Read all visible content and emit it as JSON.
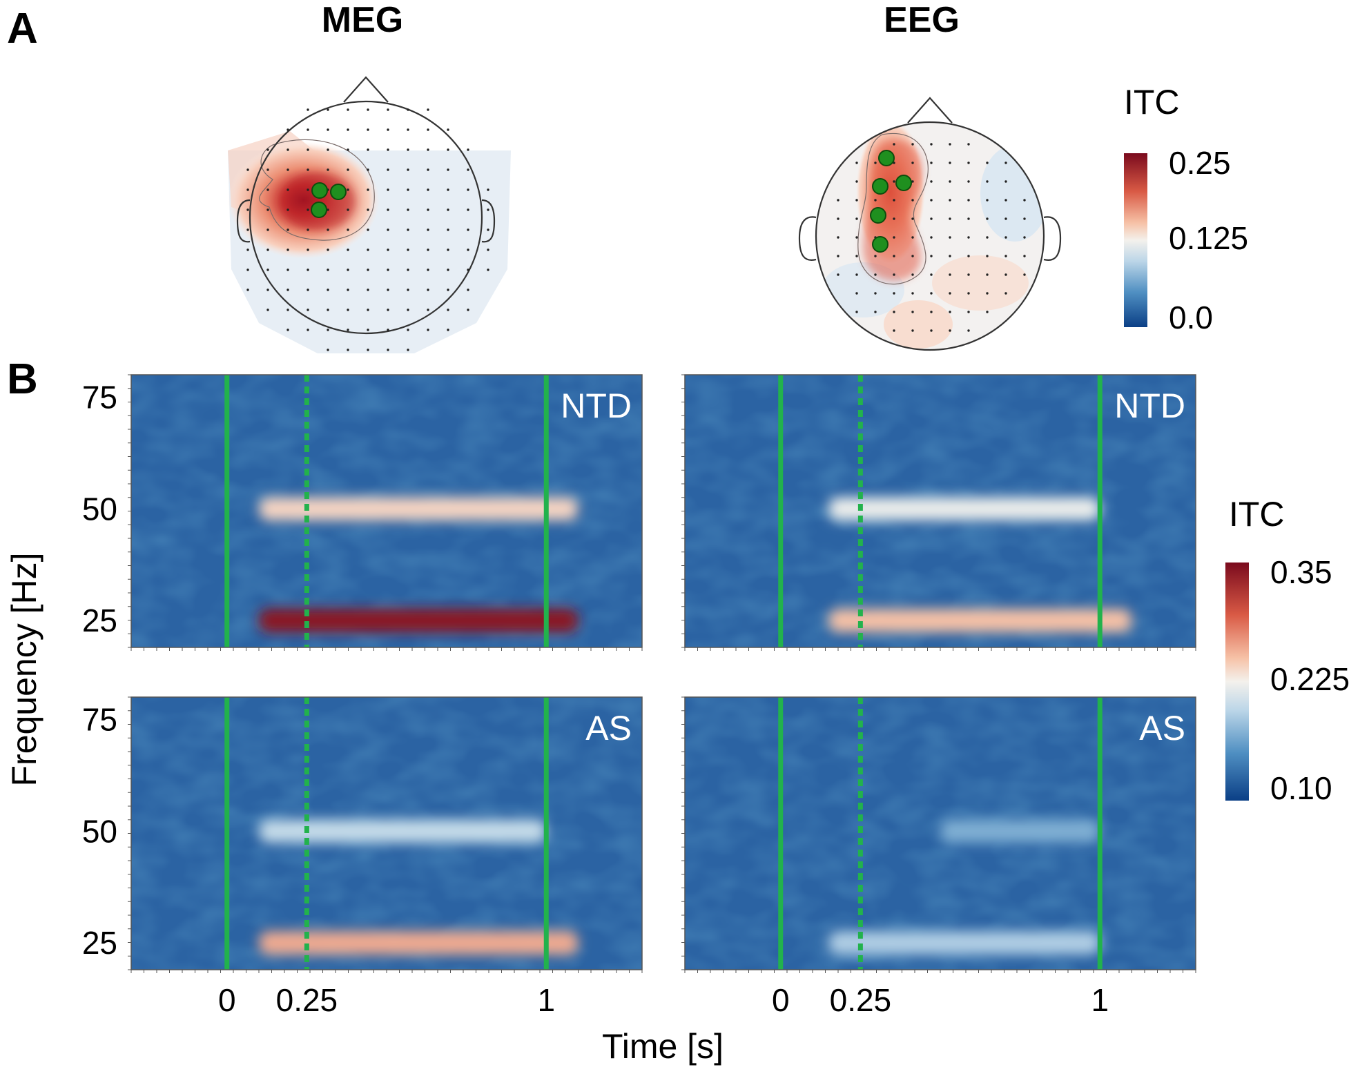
{
  "panel_labels": {
    "a": "A",
    "b": "B"
  },
  "topomaps": [
    {
      "title": "MEG",
      "hotspot_note": "left temporal ITC peak",
      "sensor_markers": 3
    },
    {
      "title": "EEG",
      "hotspot_note": "left fronto-central ITC cluster",
      "sensor_markers": 5
    }
  ],
  "colorbar_a": {
    "label": "ITC",
    "ticks": [
      "0.25",
      "0.125",
      "0.0"
    ],
    "range": [
      0.0,
      0.25
    ]
  },
  "colorbar_b": {
    "label": "ITC",
    "ticks": [
      "0.35",
      "0.225",
      "0.10"
    ],
    "range": [
      0.1,
      0.35
    ]
  },
  "axes": {
    "ylabel": "Frequency [Hz]",
    "xlabel": "Time [s]",
    "yticks": [
      {
        "value": 75,
        "label": "75"
      },
      {
        "value": 50,
        "label": "50"
      },
      {
        "value": 25,
        "label": "25"
      }
    ],
    "xticks": [
      {
        "value": 0,
        "label": "0"
      },
      {
        "value": 0.25,
        "label": "0.25"
      },
      {
        "value": 1,
        "label": "1"
      }
    ],
    "xlim": [
      -0.3,
      1.3
    ],
    "ylim": [
      19,
      80
    ]
  },
  "colors": {
    "marker_line": "#22b24c",
    "sensor_dot": "#1b8a1b",
    "cmap_low": "#0b3f86",
    "cmap_mid": "#f4f1ec",
    "cmap_high": "#7a0a1d"
  },
  "chart_data": [
    {
      "type": "heatmap",
      "title": "NTD",
      "modality": "MEG",
      "x": [
        0,
        0.25,
        1
      ],
      "y": [
        25,
        50,
        75
      ],
      "bands": [
        {
          "freq": 25,
          "t_start": 0.1,
          "t_end": 1.1,
          "itc": 0.34
        },
        {
          "freq": 50,
          "t_start": 0.1,
          "t_end": 1.1,
          "itc": 0.24
        }
      ],
      "vlines": [
        {
          "x": 0,
          "style": "solid"
        },
        {
          "x": 0.25,
          "style": "dashed"
        },
        {
          "x": 1,
          "style": "solid"
        }
      ]
    },
    {
      "type": "heatmap",
      "title": "NTD",
      "modality": "EEG",
      "x": [
        0,
        0.25,
        1
      ],
      "y": [
        25,
        50,
        75
      ],
      "bands": [
        {
          "freq": 25,
          "t_start": 0.15,
          "t_end": 1.1,
          "itc": 0.25
        },
        {
          "freq": 50,
          "t_start": 0.15,
          "t_end": 1.0,
          "itc": 0.22
        }
      ],
      "vlines": [
        {
          "x": 0,
          "style": "solid"
        },
        {
          "x": 0.25,
          "style": "dashed"
        },
        {
          "x": 1,
          "style": "solid"
        }
      ]
    },
    {
      "type": "heatmap",
      "title": "AS",
      "modality": "MEG",
      "x": [
        0,
        0.25,
        1
      ],
      "y": [
        25,
        50,
        75
      ],
      "bands": [
        {
          "freq": 25,
          "t_start": 0.1,
          "t_end": 1.1,
          "itc": 0.26
        },
        {
          "freq": 50,
          "t_start": 0.1,
          "t_end": 1.0,
          "itc": 0.2
        }
      ],
      "vlines": [
        {
          "x": 0,
          "style": "solid"
        },
        {
          "x": 0.25,
          "style": "dashed"
        },
        {
          "x": 1,
          "style": "solid"
        }
      ]
    },
    {
      "type": "heatmap",
      "title": "AS",
      "modality": "EEG",
      "x": [
        0,
        0.25,
        1
      ],
      "y": [
        25,
        50,
        75
      ],
      "bands": [
        {
          "freq": 25,
          "t_start": 0.15,
          "t_end": 1.0,
          "itc": 0.19
        },
        {
          "freq": 50,
          "t_start": 0.5,
          "t_end": 1.0,
          "itc": 0.17
        }
      ],
      "vlines": [
        {
          "x": 0,
          "style": "solid"
        },
        {
          "x": 0.25,
          "style": "dashed"
        },
        {
          "x": 1,
          "style": "solid"
        }
      ]
    }
  ]
}
